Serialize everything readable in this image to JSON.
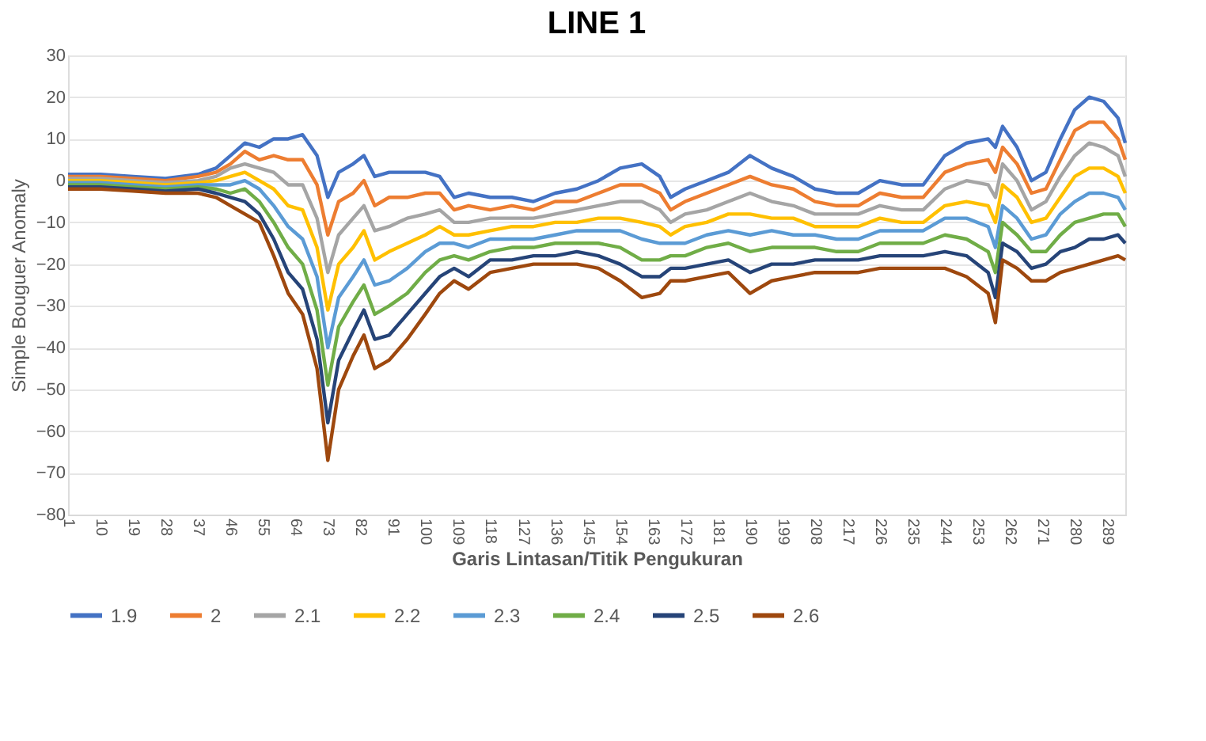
{
  "chart_data": {
    "type": "line",
    "title": "LINE 1",
    "xlabel": "Garis Lintasan/Titik Pengukuran",
    "ylabel": "Simple Bouguer Anomaly",
    "x": [
      1,
      10,
      19,
      28,
      37,
      42,
      46,
      50,
      54,
      58,
      62,
      66,
      70,
      73,
      76,
      80,
      83,
      86,
      90,
      95,
      100,
      104,
      108,
      112,
      118,
      124,
      130,
      136,
      142,
      148,
      154,
      160,
      165,
      168,
      172,
      178,
      184,
      190,
      196,
      202,
      208,
      214,
      220,
      226,
      232,
      238,
      244,
      250,
      256,
      258,
      260,
      264,
      268,
      272,
      276,
      280,
      284,
      288,
      292,
      294
    ],
    "series": [
      {
        "name": "1.9",
        "color": "#4472c4",
        "values": [
          1.5,
          1.5,
          1,
          0.5,
          1.5,
          3,
          6,
          9,
          8,
          10,
          10,
          11,
          6,
          -4,
          2,
          4,
          6,
          1,
          2,
          2,
          2,
          1,
          -4,
          -3,
          -4,
          -4,
          -5,
          -3,
          -2,
          0,
          3,
          4,
          1,
          -4,
          -2,
          0,
          2,
          6,
          3,
          1,
          -2,
          -3,
          -3,
          0,
          -1,
          -1,
          6,
          9,
          10,
          8,
          13,
          8,
          0,
          2,
          10,
          17,
          20,
          19,
          15,
          9
        ]
      },
      {
        "name": "2",
        "color": "#ed7d31",
        "values": [
          1,
          1,
          0.5,
          0,
          1,
          2,
          4,
          7,
          5,
          6,
          5,
          5,
          -1,
          -13,
          -5,
          -3,
          0,
          -6,
          -4,
          -4,
          -3,
          -3,
          -7,
          -6,
          -7,
          -6,
          -7,
          -5,
          -5,
          -3,
          -1,
          -1,
          -3,
          -7,
          -5,
          -3,
          -1,
          1,
          -1,
          -2,
          -5,
          -6,
          -6,
          -3,
          -4,
          -4,
          2,
          4,
          5,
          2,
          8,
          4,
          -3,
          -2,
          5,
          12,
          14,
          14,
          10,
          5
        ]
      },
      {
        "name": "2.1",
        "color": "#a5a5a5",
        "values": [
          0.5,
          0.5,
          0,
          -0.5,
          0,
          1,
          3,
          4,
          3,
          2,
          -1,
          -1,
          -9,
          -22,
          -13,
          -9,
          -6,
          -12,
          -11,
          -9,
          -8,
          -7,
          -10,
          -10,
          -9,
          -9,
          -9,
          -8,
          -7,
          -6,
          -5,
          -5,
          -7,
          -10,
          -8,
          -7,
          -5,
          -3,
          -5,
          -6,
          -8,
          -8,
          -8,
          -6,
          -7,
          -7,
          -2,
          0,
          -1,
          -4,
          4,
          0,
          -7,
          -5,
          1,
          6,
          9,
          8,
          6,
          1
        ]
      },
      {
        "name": "2.2",
        "color": "#ffc000",
        "values": [
          0,
          0,
          -0.5,
          -1,
          -0.5,
          0,
          1,
          2,
          0,
          -2,
          -6,
          -7,
          -16,
          -31,
          -20,
          -16,
          -12,
          -19,
          -17,
          -15,
          -13,
          -11,
          -13,
          -13,
          -12,
          -11,
          -11,
          -10,
          -10,
          -9,
          -9,
          -10,
          -11,
          -13,
          -11,
          -10,
          -8,
          -8,
          -9,
          -9,
          -11,
          -11,
          -11,
          -9,
          -10,
          -10,
          -6,
          -5,
          -6,
          -10,
          -1,
          -4,
          -10,
          -9,
          -4,
          1,
          3,
          3,
          1,
          -3
        ]
      },
      {
        "name": "2.3",
        "color": "#5b9bd5",
        "values": [
          -0.5,
          -0.5,
          -1,
          -1.5,
          -1,
          -1,
          -1,
          0,
          -2,
          -6,
          -11,
          -14,
          -23,
          -40,
          -28,
          -23,
          -19,
          -25,
          -24,
          -21,
          -17,
          -15,
          -15,
          -16,
          -14,
          -14,
          -14,
          -13,
          -12,
          -12,
          -12,
          -14,
          -15,
          -15,
          -15,
          -13,
          -12,
          -13,
          -12,
          -13,
          -13,
          -14,
          -14,
          -12,
          -12,
          -12,
          -9,
          -9,
          -11,
          -16,
          -6,
          -9,
          -14,
          -13,
          -8,
          -5,
          -3,
          -3,
          -4,
          -7
        ]
      },
      {
        "name": "2.4",
        "color": "#70ad47",
        "values": [
          -1,
          -1,
          -1.5,
          -2,
          -1.5,
          -2,
          -3,
          -2,
          -5,
          -10,
          -16,
          -20,
          -31,
          -49,
          -35,
          -29,
          -25,
          -32,
          -30,
          -27,
          -22,
          -19,
          -18,
          -19,
          -17,
          -16,
          -16,
          -15,
          -15,
          -15,
          -16,
          -19,
          -19,
          -18,
          -18,
          -16,
          -15,
          -17,
          -16,
          -16,
          -16,
          -17,
          -17,
          -15,
          -15,
          -15,
          -13,
          -14,
          -17,
          -22,
          -10,
          -13,
          -17,
          -17,
          -13,
          -10,
          -9,
          -8,
          -8,
          -11
        ]
      },
      {
        "name": "2.5",
        "color": "#264478",
        "values": [
          -1.5,
          -1.5,
          -2,
          -2.5,
          -2,
          -3,
          -4,
          -5,
          -8,
          -14,
          -22,
          -26,
          -38,
          -58,
          -43,
          -36,
          -31,
          -38,
          -37,
          -32,
          -27,
          -23,
          -21,
          -23,
          -19,
          -19,
          -18,
          -18,
          -17,
          -18,
          -20,
          -23,
          -23,
          -21,
          -21,
          -20,
          -19,
          -22,
          -20,
          -20,
          -19,
          -19,
          -19,
          -18,
          -18,
          -18,
          -17,
          -18,
          -22,
          -28,
          -15,
          -17,
          -21,
          -20,
          -17,
          -16,
          -14,
          -14,
          -13,
          -15
        ]
      },
      {
        "name": "2.6",
        "color": "#9e480e",
        "values": [
          -2,
          -2,
          -2.5,
          -3,
          -3,
          -4,
          -6,
          -8,
          -10,
          -18,
          -27,
          -32,
          -45,
          -67,
          -50,
          -42,
          -37,
          -45,
          -43,
          -38,
          -32,
          -27,
          -24,
          -26,
          -22,
          -21,
          -20,
          -20,
          -20,
          -21,
          -24,
          -28,
          -27,
          -24,
          -24,
          -23,
          -22,
          -27,
          -24,
          -23,
          -22,
          -22,
          -22,
          -21,
          -21,
          -21,
          -21,
          -23,
          -27,
          -34,
          -19,
          -21,
          -24,
          -24,
          -22,
          -21,
          -20,
          -19,
          -18,
          -19
        ]
      }
    ],
    "xlim": [
      1,
      294
    ],
    "xticks": [
      1,
      10,
      19,
      28,
      37,
      46,
      55,
      64,
      73,
      82,
      91,
      100,
      109,
      118,
      127,
      136,
      145,
      154,
      163,
      172,
      181,
      190,
      199,
      208,
      217,
      226,
      235,
      244,
      253,
      262,
      271,
      280,
      289
    ],
    "ylim": [
      -80,
      30
    ],
    "yticks": [
      -80,
      -70,
      -60,
      -50,
      -40,
      -30,
      -20,
      -10,
      0,
      10,
      20,
      30
    ],
    "grid": "y",
    "legend": "bottom",
    "marker": "none",
    "line_style": "solid"
  }
}
